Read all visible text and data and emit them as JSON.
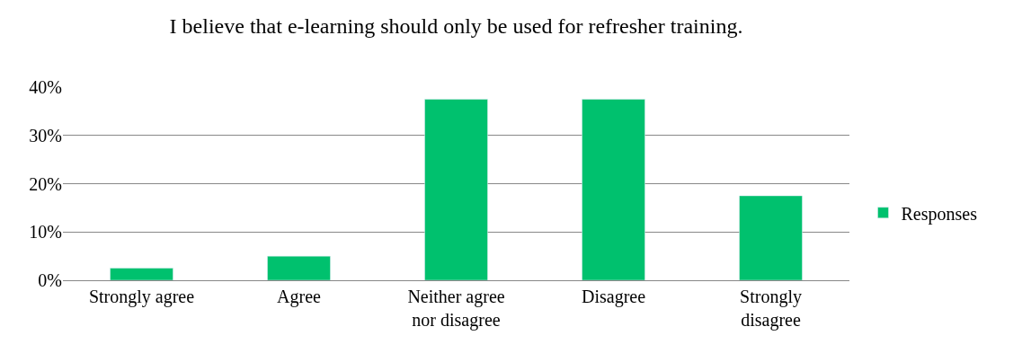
{
  "chart_data": {
    "type": "bar",
    "title": "I believe that e-learning should only be used for refresher training.",
    "categories": [
      "Strongly agree",
      "Agree",
      "Neither agree\nnor disagree",
      "Disagree",
      "Strongly\ndisagree"
    ],
    "series": [
      {
        "name": "Responses",
        "color": "#00c16e",
        "values": [
          2.5,
          5,
          37.5,
          37.5,
          17.5
        ]
      }
    ],
    "ylim": [
      0,
      40
    ],
    "yticks": [
      {
        "value": 0,
        "label": "0%"
      },
      {
        "value": 10,
        "label": "10%"
      },
      {
        "value": 20,
        "label": "20%"
      },
      {
        "value": 30,
        "label": "30%"
      },
      {
        "value": 40,
        "label": "40%"
      }
    ],
    "grid": "y",
    "legend": "right"
  }
}
